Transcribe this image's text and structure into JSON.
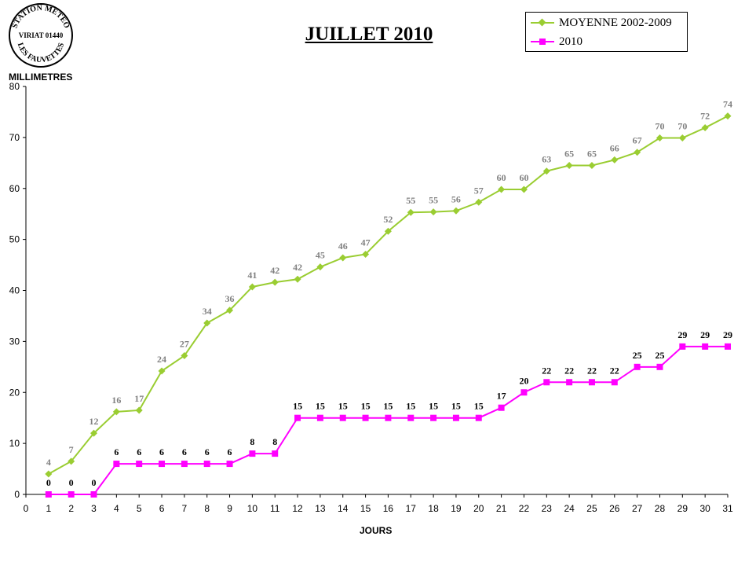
{
  "stamp": {
    "line1": "STATION METEO",
    "line2": "VIRIAT 01440",
    "line3": "LES FAUVETTES"
  },
  "colors": {
    "moyenne": "#9ACD32",
    "year2010": "#FF00FF",
    "moyenne_label": "#808080",
    "year2010_label": "#000000"
  },
  "chart_data": {
    "type": "line",
    "title": "JUILLET 2010",
    "xlabel": "JOURS",
    "ylabel": "MILLIMETRES",
    "xlim": [
      0,
      31
    ],
    "ylim": [
      0,
      80
    ],
    "xticks": [
      0,
      1,
      2,
      3,
      4,
      5,
      6,
      7,
      8,
      9,
      10,
      11,
      12,
      13,
      14,
      15,
      16,
      17,
      18,
      19,
      20,
      21,
      22,
      23,
      24,
      25,
      26,
      27,
      28,
      29,
      30,
      31
    ],
    "yticks": [
      0,
      10,
      20,
      30,
      40,
      50,
      60,
      70,
      80
    ],
    "grid": false,
    "legend_position": "top-right",
    "x": [
      1,
      2,
      3,
      4,
      5,
      6,
      7,
      8,
      9,
      10,
      11,
      12,
      13,
      14,
      15,
      16,
      17,
      18,
      19,
      20,
      21,
      22,
      23,
      24,
      25,
      26,
      27,
      28,
      29,
      30,
      31
    ],
    "series": [
      {
        "name": "MOYENNE 2002-2009",
        "marker": "diamond",
        "values": [
          4,
          6.5,
          12,
          16.2,
          16.5,
          24.2,
          27.2,
          33.6,
          36.1,
          40.7,
          41.6,
          42.2,
          44.6,
          46.4,
          47.1,
          51.6,
          55.3,
          55.4,
          55.6,
          57.3,
          59.8,
          59.8,
          63.4,
          64.5,
          64.5,
          65.6,
          67.1,
          69.9,
          69.9,
          71.9,
          74.2
        ],
        "labels": [
          "4",
          "7",
          "12",
          "16",
          "17",
          "24",
          "27",
          "34",
          "36",
          "41",
          "42",
          "42",
          "45",
          "46",
          "47",
          "52",
          "55",
          "55",
          "56",
          "57",
          "60",
          "60",
          "63",
          "65",
          "65",
          "66",
          "67",
          "70",
          "70",
          "72",
          "74"
        ]
      },
      {
        "name": "2010",
        "marker": "square",
        "values": [
          0,
          0,
          0,
          6,
          6,
          6,
          6,
          6,
          6,
          8,
          8,
          15,
          15,
          15,
          15,
          15,
          15,
          15,
          15,
          15,
          17,
          20,
          22,
          22,
          22,
          22,
          25,
          25,
          29,
          29,
          29
        ],
        "labels": [
          "0",
          "0",
          "0",
          "6",
          "6",
          "6",
          "6",
          "6",
          "6",
          "8",
          "8",
          "15",
          "15",
          "15",
          "15",
          "15",
          "15",
          "15",
          "15",
          "15",
          "17",
          "20",
          "22",
          "22",
          "22",
          "22",
          "25",
          "25",
          "29",
          "29",
          "29"
        ]
      }
    ]
  }
}
